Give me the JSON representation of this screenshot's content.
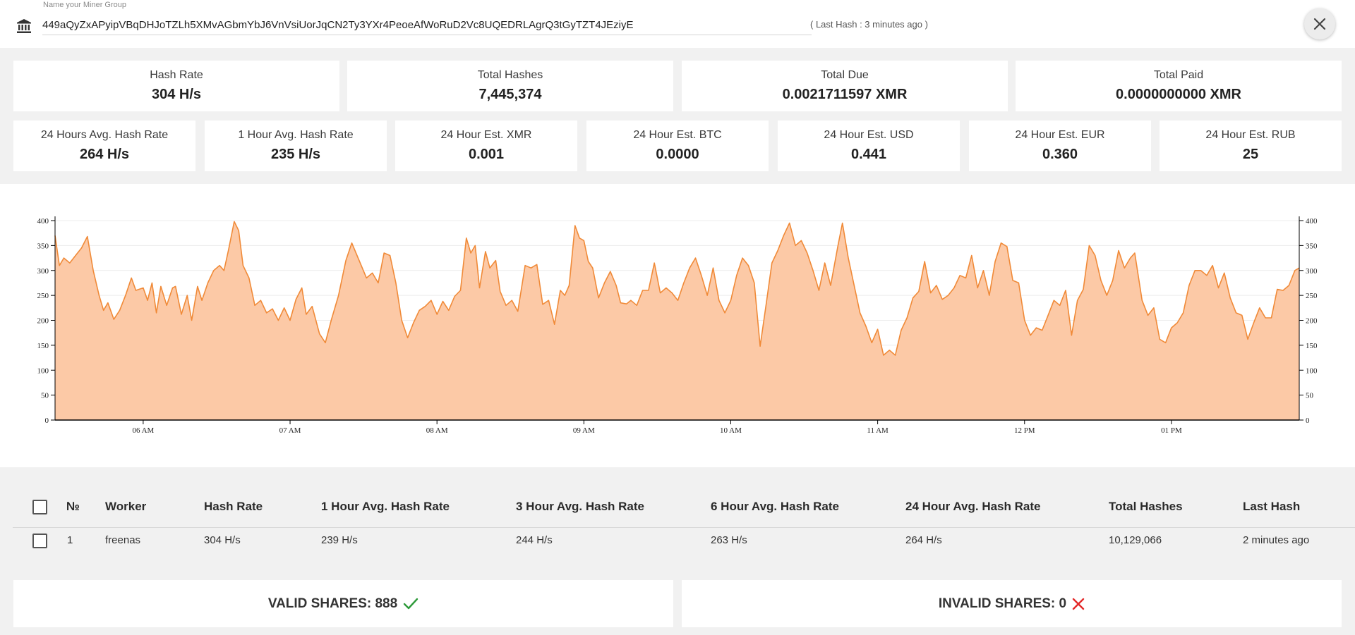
{
  "header": {
    "field_label": "Name your Miner Group",
    "address": "449aQyZxAPyipVBqDHJoTZLh5XMvAGbmYbJ6VnVsiUorJqCN2Ty3YXr4PeoeAfWoRuD2Vc8UQEDRLAgrQ3tGyTZT4JEziyE",
    "last_hash_note": "( Last Hash : 3 minutes ago )",
    "icon": "bank-icon",
    "close_icon": "close-icon"
  },
  "stats_top": [
    {
      "label": "Hash Rate",
      "value": "304 H/s"
    },
    {
      "label": "Total Hashes",
      "value": "7,445,374"
    },
    {
      "label": "Total Due",
      "value": "0.0021711597 XMR"
    },
    {
      "label": "Total Paid",
      "value": "0.0000000000 XMR"
    }
  ],
  "stats_bottom": [
    {
      "label": "24 Hours Avg. Hash Rate",
      "value": "264 H/s"
    },
    {
      "label": "1 Hour Avg. Hash Rate",
      "value": "235 H/s"
    },
    {
      "label": "24 Hour Est. XMR",
      "value": "0.001"
    },
    {
      "label": "24 Hour Est. BTC",
      "value": "0.0000"
    },
    {
      "label": "24 Hour Est. USD",
      "value": "0.441"
    },
    {
      "label": "24 Hour Est. EUR",
      "value": "0.360"
    },
    {
      "label": "24 Hour Est. RUB",
      "value": "25"
    }
  ],
  "chart_data": {
    "type": "area",
    "title": "",
    "xlabel": "",
    "ylabel": "",
    "ylim": [
      0,
      400
    ],
    "yticks": [
      0,
      50,
      100,
      150,
      200,
      250,
      300,
      350,
      400
    ],
    "xrange": [
      5.4,
      13.87
    ],
    "xticks": [
      {
        "t": 6,
        "label": "06 AM"
      },
      {
        "t": 7,
        "label": "07 AM"
      },
      {
        "t": 8,
        "label": "08 AM"
      },
      {
        "t": 9,
        "label": "09 AM"
      },
      {
        "t": 10,
        "label": "10 AM"
      },
      {
        "t": 11,
        "label": "11 AM"
      },
      {
        "t": 12,
        "label": "12 PM"
      },
      {
        "t": 13,
        "label": "01 PM"
      }
    ],
    "grid": true,
    "color": "#f08a38",
    "fill": "#fcc9a6",
    "series": [
      {
        "points": [
          [
            5.4,
            370
          ],
          [
            5.43,
            310
          ],
          [
            5.46,
            325
          ],
          [
            5.5,
            315
          ],
          [
            5.54,
            330
          ],
          [
            5.58,
            345
          ],
          [
            5.62,
            368
          ],
          [
            5.66,
            300
          ],
          [
            5.7,
            250
          ],
          [
            5.73,
            220
          ],
          [
            5.76,
            235
          ],
          [
            5.8,
            202
          ],
          [
            5.84,
            220
          ],
          [
            5.88,
            250
          ],
          [
            5.92,
            285
          ],
          [
            5.95,
            260
          ],
          [
            6.0,
            265
          ],
          [
            6.03,
            240
          ],
          [
            6.06,
            275
          ],
          [
            6.09,
            215
          ],
          [
            6.12,
            268
          ],
          [
            6.16,
            230
          ],
          [
            6.2,
            265
          ],
          [
            6.22,
            268
          ],
          [
            6.26,
            212
          ],
          [
            6.3,
            250
          ],
          [
            6.33,
            200
          ],
          [
            6.37,
            268
          ],
          [
            6.4,
            240
          ],
          [
            6.44,
            275
          ],
          [
            6.48,
            300
          ],
          [
            6.52,
            310
          ],
          [
            6.55,
            300
          ],
          [
            6.58,
            340
          ],
          [
            6.62,
            398
          ],
          [
            6.65,
            380
          ],
          [
            6.68,
            310
          ],
          [
            6.72,
            285
          ],
          [
            6.76,
            230
          ],
          [
            6.8,
            240
          ],
          [
            6.84,
            215
          ],
          [
            6.88,
            223
          ],
          [
            6.92,
            200
          ],
          [
            6.96,
            225
          ],
          [
            7.0,
            200
          ],
          [
            7.04,
            242
          ],
          [
            7.08,
            265
          ],
          [
            7.11,
            212
          ],
          [
            7.15,
            228
          ],
          [
            7.2,
            173
          ],
          [
            7.24,
            155
          ],
          [
            7.28,
            200
          ],
          [
            7.33,
            250
          ],
          [
            7.38,
            320
          ],
          [
            7.42,
            355
          ],
          [
            7.47,
            320
          ],
          [
            7.52,
            285
          ],
          [
            7.56,
            295
          ],
          [
            7.6,
            275
          ],
          [
            7.64,
            335
          ],
          [
            7.68,
            330
          ],
          [
            7.72,
            275
          ],
          [
            7.76,
            200
          ],
          [
            7.8,
            165
          ],
          [
            7.84,
            195
          ],
          [
            7.88,
            220
          ],
          [
            7.92,
            228
          ],
          [
            7.96,
            240
          ],
          [
            8.0,
            212
          ],
          [
            8.04,
            238
          ],
          [
            8.08,
            220
          ],
          [
            8.12,
            248
          ],
          [
            8.16,
            260
          ],
          [
            8.2,
            365
          ],
          [
            8.23,
            335
          ],
          [
            8.26,
            350
          ],
          [
            8.29,
            265
          ],
          [
            8.33,
            338
          ],
          [
            8.36,
            305
          ],
          [
            8.4,
            320
          ],
          [
            8.43,
            258
          ],
          [
            8.47,
            230
          ],
          [
            8.51,
            240
          ],
          [
            8.55,
            218
          ],
          [
            8.6,
            310
          ],
          [
            8.64,
            305
          ],
          [
            8.68,
            312
          ],
          [
            8.72,
            232
          ],
          [
            8.76,
            240
          ],
          [
            8.8,
            192
          ],
          [
            8.84,
            260
          ],
          [
            8.87,
            250
          ],
          [
            8.9,
            270
          ],
          [
            8.94,
            390
          ],
          [
            8.97,
            365
          ],
          [
            9.0,
            360
          ],
          [
            9.03,
            318
          ],
          [
            9.06,
            305
          ],
          [
            9.1,
            245
          ],
          [
            9.14,
            275
          ],
          [
            9.18,
            298
          ],
          [
            9.22,
            270
          ],
          [
            9.25,
            235
          ],
          [
            9.29,
            233
          ],
          [
            9.32,
            240
          ],
          [
            9.36,
            230
          ],
          [
            9.4,
            260
          ],
          [
            9.44,
            260
          ],
          [
            9.48,
            315
          ],
          [
            9.52,
            255
          ],
          [
            9.56,
            265
          ],
          [
            9.6,
            255
          ],
          [
            9.64,
            240
          ],
          [
            9.68,
            275
          ],
          [
            9.72,
            305
          ],
          [
            9.76,
            325
          ],
          [
            9.8,
            290
          ],
          [
            9.84,
            250
          ],
          [
            9.88,
            305
          ],
          [
            9.92,
            240
          ],
          [
            9.96,
            215
          ],
          [
            10.0,
            240
          ],
          [
            10.04,
            290
          ],
          [
            10.08,
            325
          ],
          [
            10.12,
            310
          ],
          [
            10.16,
            275
          ],
          [
            10.2,
            148
          ],
          [
            10.24,
            230
          ],
          [
            10.28,
            315
          ],
          [
            10.32,
            340
          ],
          [
            10.36,
            370
          ],
          [
            10.4,
            395
          ],
          [
            10.44,
            350
          ],
          [
            10.48,
            360
          ],
          [
            10.52,
            335
          ],
          [
            10.56,
            300
          ],
          [
            10.6,
            260
          ],
          [
            10.64,
            315
          ],
          [
            10.68,
            270
          ],
          [
            10.73,
            350
          ],
          [
            10.76,
            395
          ],
          [
            10.8,
            325
          ],
          [
            10.84,
            270
          ],
          [
            10.88,
            215
          ],
          [
            10.92,
            188
          ],
          [
            10.96,
            155
          ],
          [
            11.0,
            182
          ],
          [
            11.04,
            130
          ],
          [
            11.08,
            140
          ],
          [
            11.12,
            130
          ],
          [
            11.16,
            180
          ],
          [
            11.2,
            205
          ],
          [
            11.24,
            245
          ],
          [
            11.28,
            258
          ],
          [
            11.32,
            318
          ],
          [
            11.36,
            255
          ],
          [
            11.4,
            270
          ],
          [
            11.44,
            242
          ],
          [
            11.48,
            250
          ],
          [
            11.52,
            265
          ],
          [
            11.56,
            290
          ],
          [
            11.6,
            285
          ],
          [
            11.64,
            330
          ],
          [
            11.68,
            265
          ],
          [
            11.72,
            300
          ],
          [
            11.76,
            250
          ],
          [
            11.8,
            318
          ],
          [
            11.84,
            355
          ],
          [
            11.88,
            348
          ],
          [
            11.92,
            280
          ],
          [
            11.96,
            275
          ],
          [
            12.0,
            200
          ],
          [
            12.04,
            170
          ],
          [
            12.08,
            185
          ],
          [
            12.12,
            180
          ],
          [
            12.16,
            210
          ],
          [
            12.2,
            240
          ],
          [
            12.24,
            230
          ],
          [
            12.28,
            260
          ],
          [
            12.32,
            170
          ],
          [
            12.36,
            240
          ],
          [
            12.4,
            262
          ],
          [
            12.44,
            350
          ],
          [
            12.48,
            330
          ],
          [
            12.52,
            280
          ],
          [
            12.56,
            250
          ],
          [
            12.6,
            280
          ],
          [
            12.64,
            340
          ],
          [
            12.68,
            305
          ],
          [
            12.72,
            325
          ],
          [
            12.75,
            335
          ],
          [
            12.8,
            240
          ],
          [
            12.84,
            210
          ],
          [
            12.88,
            225
          ],
          [
            12.92,
            162
          ],
          [
            12.96,
            155
          ],
          [
            13.0,
            185
          ],
          [
            13.04,
            195
          ],
          [
            13.08,
            215
          ],
          [
            13.12,
            270
          ],
          [
            13.16,
            300
          ],
          [
            13.2,
            300
          ],
          [
            13.24,
            290
          ],
          [
            13.28,
            310
          ],
          [
            13.32,
            265
          ],
          [
            13.36,
            295
          ],
          [
            13.4,
            245
          ],
          [
            13.44,
            215
          ],
          [
            13.48,
            210
          ],
          [
            13.52,
            162
          ],
          [
            13.56,
            195
          ],
          [
            13.6,
            225
          ],
          [
            13.64,
            205
          ],
          [
            13.68,
            205
          ],
          [
            13.72,
            262
          ],
          [
            13.76,
            260
          ],
          [
            13.8,
            270
          ],
          [
            13.84,
            300
          ],
          [
            13.87,
            305
          ]
        ]
      }
    ]
  },
  "table": {
    "columns": [
      "№",
      "Worker",
      "Hash Rate",
      "1 Hour Avg. Hash Rate",
      "3 Hour Avg. Hash Rate",
      "6 Hour Avg. Hash Rate",
      "24 Hour Avg. Hash Rate",
      "Total Hashes",
      "Last Hash"
    ],
    "rows": [
      [
        "1",
        "freenas",
        "304 H/s",
        "239 H/s",
        "244 H/s",
        "263 H/s",
        "264 H/s",
        "10,129,066",
        "2 minutes ago"
      ]
    ]
  },
  "shares": {
    "valid_label": "VALID SHARES: 888",
    "valid_icon": "check-icon",
    "valid_color": "#2e9a3a",
    "invalid_label": "INVALID SHARES: 0",
    "invalid_icon": "cross-icon",
    "invalid_color": "#e32a2a"
  }
}
